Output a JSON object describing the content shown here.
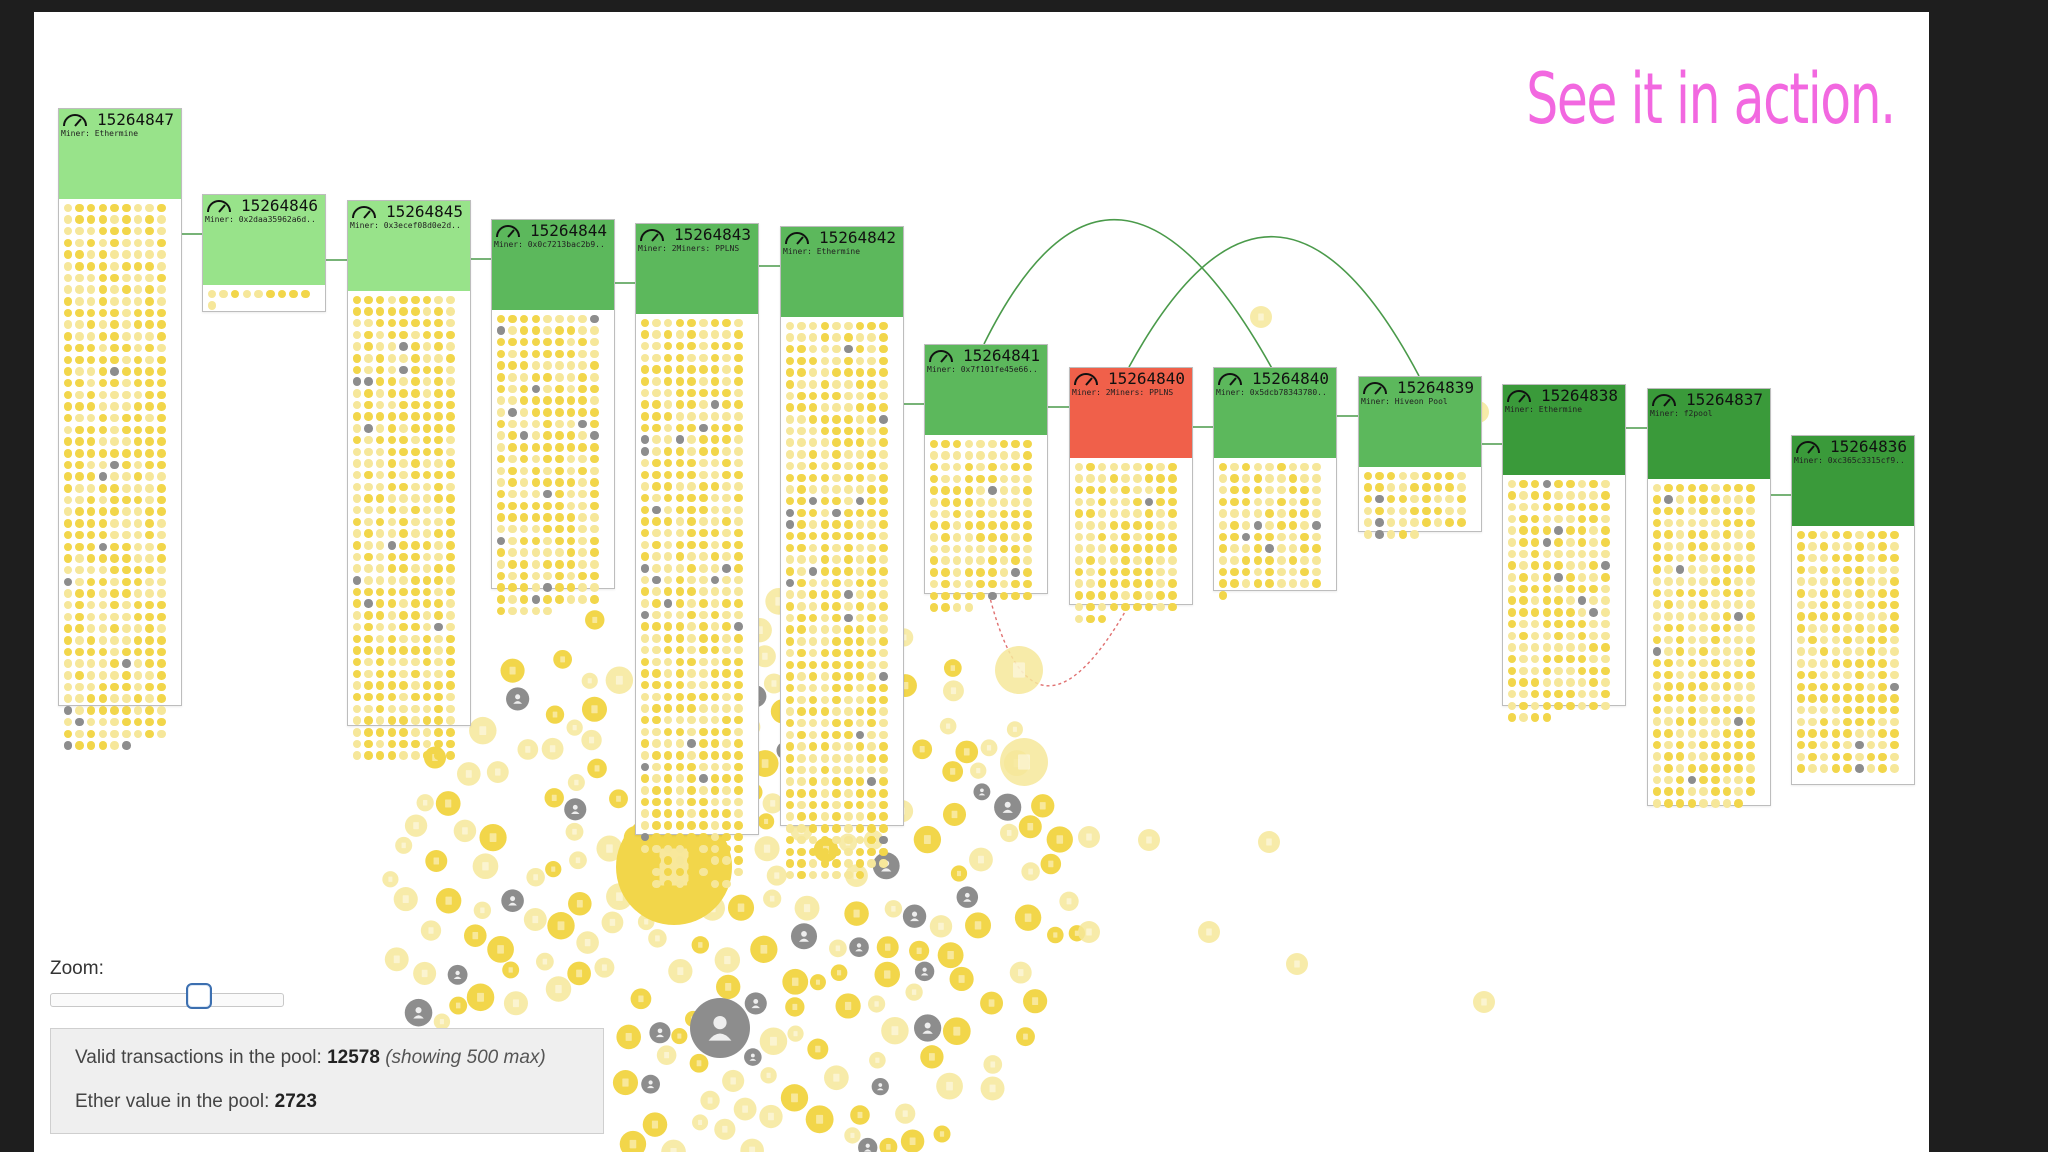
{
  "headline": "See it in action.",
  "blocks": [
    {
      "number": "15264847",
      "miner": "Miner: Ethermine",
      "status": "confirmed"
    },
    {
      "number": "15264846",
      "miner": "Miner: 0x2daa35962a6d..",
      "status": "confirmed"
    },
    {
      "number": "15264845",
      "miner": "Miner: 0x3ecef08d0e2d..",
      "status": "confirmed"
    },
    {
      "number": "15264844",
      "miner": "Miner: 0x0c7213bac2b9..",
      "status": "confirmed"
    },
    {
      "number": "15264843",
      "miner": "Miner: 2Miners: PPLNS",
      "status": "confirmed"
    },
    {
      "number": "15264842",
      "miner": "Miner: Ethermine",
      "status": "confirmed"
    },
    {
      "number": "15264841",
      "miner": "Miner: 0x7f101fe45e66..",
      "status": "confirmed"
    },
    {
      "number": "15264840",
      "miner": "Miner: 2Miners: PPLNS",
      "status": "uncle"
    },
    {
      "number": "15264840",
      "miner": "Miner: 0x5dcb78343780..",
      "status": "confirmed"
    },
    {
      "number": "15264839",
      "miner": "Miner: Hiveon Pool",
      "status": "confirmed"
    },
    {
      "number": "15264838",
      "miner": "Miner: Ethermine",
      "status": "confirmed"
    },
    {
      "number": "15264837",
      "miner": "Miner: f2pool",
      "status": "confirmed"
    },
    {
      "number": "15264836",
      "miner": "Miner: 0xc365c3315cf9..",
      "status": "confirmed"
    }
  ],
  "zoom": {
    "label": "Zoom:",
    "value": 0.52
  },
  "stats": {
    "valid_label": "Valid transactions in the pool: ",
    "valid_count": "12578",
    "valid_note": "(showing 500 max)",
    "ether_label": "Ether value in the pool: ",
    "ether_value": "2723"
  },
  "colors": {
    "headline": "#f268e0",
    "block_header_light": "#98e38a",
    "block_header_mid": "#5cb85c",
    "block_header_dark": "#3a9a3a",
    "block_header_uncle": "#f0604a",
    "tx_yellow": "#f2d64a",
    "tx_pale": "#f6e79a",
    "tx_gray": "#8d8d8d",
    "link_line": "#4a9a4a"
  },
  "icons": {
    "block": "gauge-icon",
    "transaction": "document-icon",
    "account": "user-icon"
  }
}
